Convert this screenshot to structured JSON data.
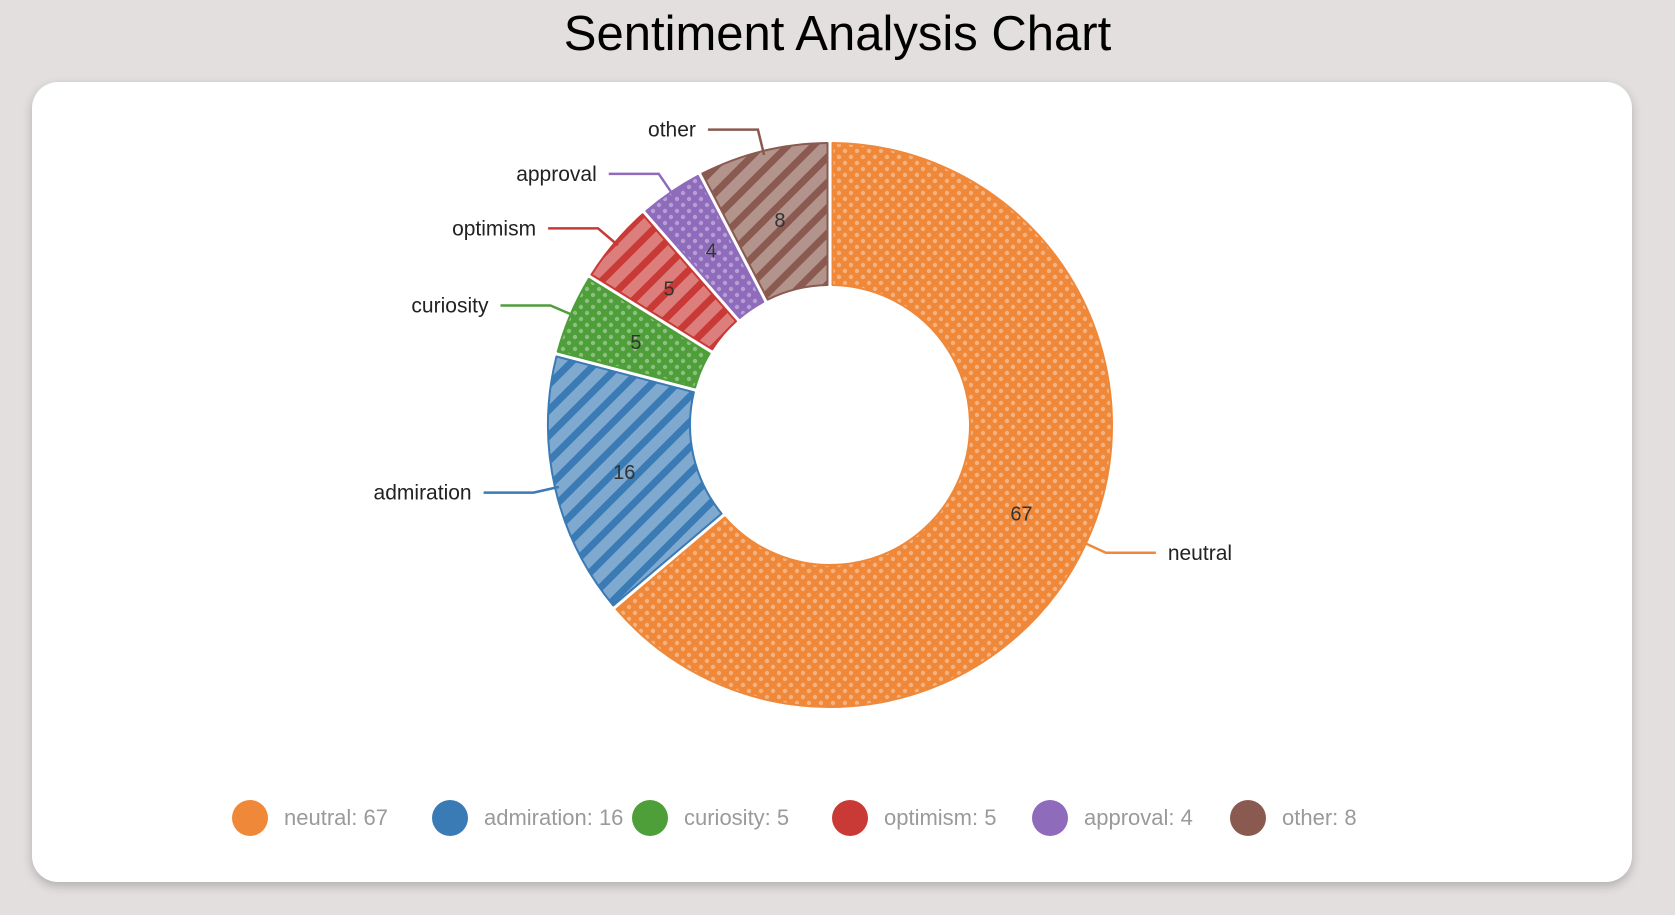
{
  "title": "Sentiment Analysis Chart",
  "chart_data": {
    "type": "pie",
    "variant": "donut",
    "categories": [
      "neutral",
      "admiration",
      "curiosity",
      "optimism",
      "approval",
      "other"
    ],
    "values": [
      67,
      16,
      5,
      5,
      4,
      8
    ],
    "colors": [
      "#f0883a",
      "#3a7ab5",
      "#4e9e3a",
      "#c93a36",
      "#8f6bbb",
      "#8a5a50"
    ],
    "patterns": [
      "dots",
      "stripes",
      "dots",
      "stripes",
      "dots",
      "stripes"
    ],
    "data_labels": [
      "67",
      "16",
      "5",
      "5",
      "4",
      "8"
    ],
    "legend": {
      "position": "bottom",
      "entries": [
        "neutral: 67",
        "admiration: 16",
        "curiosity: 5",
        "optimism: 5",
        "approval: 4",
        "other: 8"
      ]
    }
  }
}
